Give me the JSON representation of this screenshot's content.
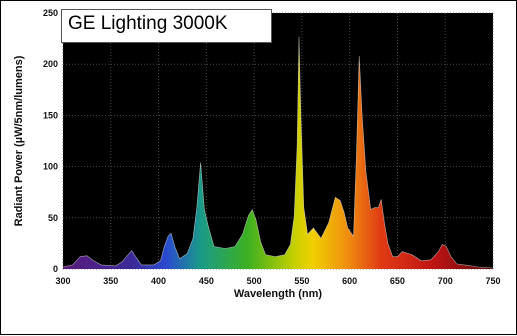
{
  "chart_data": {
    "type": "area",
    "title": "GE Lighting 3000K",
    "xlabel": "Wavelength (nm)",
    "ylabel": "Radiant Power (µW/5nm/lumens)",
    "xlim": [
      300,
      750
    ],
    "ylim": [
      0,
      250
    ],
    "x_ticks": [
      300,
      350,
      400,
      450,
      500,
      550,
      600,
      650,
      700,
      750
    ],
    "y_ticks": [
      0,
      50,
      100,
      150,
      200,
      250
    ],
    "grid": true,
    "background": "#000000",
    "grid_color": "#555555",
    "series": [
      {
        "x": [
          300,
          310,
          318,
          325,
          332,
          340,
          355,
          362,
          368,
          372,
          376,
          382,
          395,
          402,
          406,
          410,
          413,
          417,
          422,
          430,
          436,
          440,
          444,
          448,
          452,
          458,
          470,
          480,
          488,
          494,
          498,
          502,
          507,
          512,
          522,
          532,
          538,
          542,
          545,
          547,
          549,
          552,
          556,
          562,
          570,
          578,
          585,
          590,
          594,
          598,
          604,
          607,
          610,
          613,
          617,
          622,
          626,
          630,
          633,
          636,
          640,
          645,
          650,
          655,
          665,
          675,
          685,
          692,
          697,
          701,
          706,
          712,
          720,
          735,
          750
        ],
        "y": [
          2,
          4,
          12,
          13,
          8,
          4,
          3,
          7,
          14,
          18,
          12,
          4,
          4,
          8,
          22,
          32,
          35,
          22,
          10,
          15,
          30,
          60,
          104,
          58,
          42,
          22,
          20,
          22,
          34,
          52,
          58,
          48,
          26,
          14,
          12,
          14,
          24,
          52,
          120,
          227,
          150,
          60,
          34,
          40,
          30,
          45,
          70,
          67,
          56,
          40,
          32,
          110,
          208,
          150,
          95,
          58,
          60,
          60,
          68,
          47,
          25,
          12,
          12,
          17,
          14,
          8,
          9,
          16,
          24,
          22,
          12,
          5,
          4,
          2,
          1
        ]
      }
    ]
  }
}
